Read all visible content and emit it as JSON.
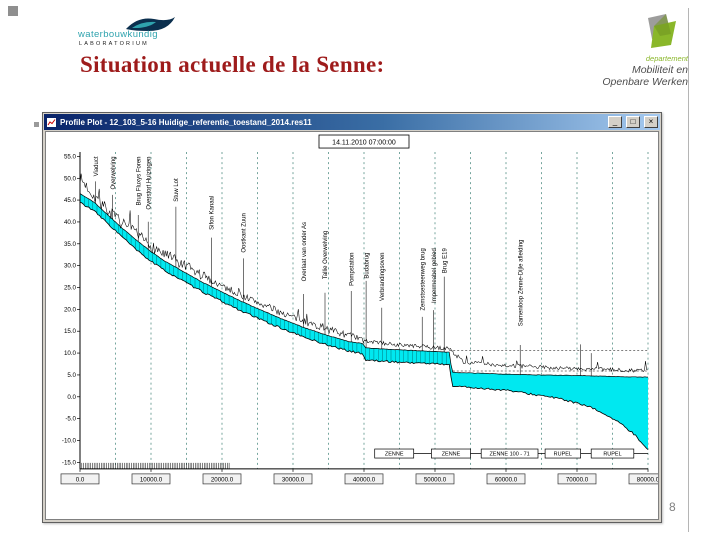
{
  "slide": {
    "title": "Situation actuelle de la Senne:",
    "page_number": "8"
  },
  "logos": {
    "wl": {
      "name": "waterbouwkundig",
      "sub": "LABORATORIUM"
    },
    "mow": {
      "dept": "departement",
      "line1": "Mobiliteit en",
      "line2": "Openbare Werken"
    }
  },
  "window": {
    "title": "Profile Plot - 12_103_5-16 Huidige_referentie_toestand_2014.res11",
    "buttons": {
      "minimize": "_",
      "maximize": "□",
      "close": "×"
    }
  },
  "colors": {
    "title_maroon": "#9e1b1b",
    "wl_teal": "#2fa3ae",
    "mow_green": "#8ab72a",
    "water_fill": "#00e8f0",
    "grid_line": "#1d6b5e"
  },
  "chart_data": {
    "type": "area",
    "title": "14.11.2010 07:00:00",
    "xlabel": "",
    "ylabel": "",
    "xlim": [
      0,
      80000
    ],
    "ylim": [
      -16.5,
      56
    ],
    "x_ticks": {
      "values": [
        0,
        10000,
        20000,
        30000,
        40000,
        50000,
        60000,
        70000,
        80000
      ],
      "labels": [
        "0.0",
        "10000.0",
        "20000.0",
        "30000.0",
        "40000.0",
        "50000.0",
        "60000.0",
        "70000.0",
        "80000.0"
      ]
    },
    "y_ticks": {
      "values": [
        55,
        50,
        45,
        40,
        35,
        30,
        25,
        20,
        15,
        10,
        5,
        0,
        -5,
        -10,
        -15
      ],
      "labels": [
        "55.0",
        "50.0",
        "45.0",
        "40.0",
        "35.0",
        "30.0",
        "25.0",
        "20.0",
        "15.0",
        "10.0",
        "5.0",
        "0.0",
        "-5.0",
        "-10.0",
        "-15.0"
      ]
    },
    "grid": {
      "vertical_interval": 5000,
      "style": "dashed"
    },
    "grid_color": "#1d6b5e",
    "water_fill": "#00e8f0",
    "hatch_until": 52000,
    "profiles": {
      "water_surface": [
        [
          0,
          46.5
        ],
        [
          2000,
          44.5
        ],
        [
          4000,
          41.5
        ],
        [
          6000,
          38.5
        ],
        [
          8000,
          35.8
        ],
        [
          10000,
          33.2
        ],
        [
          12000,
          31
        ],
        [
          14000,
          29.2
        ],
        [
          16000,
          27.3
        ],
        [
          18000,
          25.6
        ],
        [
          20000,
          24
        ],
        [
          22000,
          22.4
        ],
        [
          24000,
          20.9
        ],
        [
          26000,
          19.5
        ],
        [
          28000,
          18.1
        ],
        [
          30000,
          16.8
        ],
        [
          32000,
          15.6
        ],
        [
          34000,
          14.5
        ],
        [
          36000,
          13.5
        ],
        [
          38000,
          12.6
        ],
        [
          39800,
          12.2
        ],
        [
          40200,
          11.2
        ],
        [
          44000,
          10.8
        ],
        [
          48000,
          10.5
        ],
        [
          52000,
          10.2
        ],
        [
          52400,
          5.6
        ],
        [
          56000,
          5.4
        ],
        [
          60000,
          5.2
        ],
        [
          64000,
          5.0
        ],
        [
          68000,
          4.9
        ],
        [
          72000,
          4.8
        ],
        [
          76000,
          4.6
        ],
        [
          80000,
          4.5
        ]
      ],
      "riverbed": [
        [
          0,
          44.5
        ],
        [
          2000,
          42.5
        ],
        [
          4000,
          39.5
        ],
        [
          6000,
          36.5
        ],
        [
          8000,
          33.5
        ],
        [
          10000,
          31
        ],
        [
          12000,
          28.8
        ],
        [
          14000,
          27
        ],
        [
          16000,
          25.1
        ],
        [
          18000,
          23.4
        ],
        [
          20000,
          21.8
        ],
        [
          22000,
          20.2
        ],
        [
          24000,
          18.7
        ],
        [
          26000,
          17.3
        ],
        [
          28000,
          15.9
        ],
        [
          30000,
          14.6
        ],
        [
          32000,
          13.4
        ],
        [
          34000,
          12.3
        ],
        [
          36000,
          11.3
        ],
        [
          38000,
          10.4
        ],
        [
          39800,
          9.9
        ],
        [
          40200,
          8.4
        ],
        [
          44000,
          8.0
        ],
        [
          48000,
          7.7
        ],
        [
          52000,
          7.4
        ],
        [
          52400,
          2.5
        ],
        [
          56000,
          2.0
        ],
        [
          60000,
          1.5
        ],
        [
          62000,
          1.0
        ],
        [
          64000,
          0.5
        ],
        [
          66000,
          0.0
        ],
        [
          68000,
          -0.6
        ],
        [
          70000,
          -1.5
        ],
        [
          72000,
          -2.5
        ],
        [
          74000,
          -4.0
        ],
        [
          76000,
          -6.0
        ],
        [
          78000,
          -8.5
        ],
        [
          80000,
          -12.0
        ]
      ],
      "terrain": [
        [
          0,
          50
        ],
        [
          2000,
          46
        ],
        [
          4000,
          42.5
        ],
        [
          6000,
          39.5
        ],
        [
          8000,
          37
        ],
        [
          10000,
          34.5
        ],
        [
          12000,
          32.5
        ],
        [
          14000,
          30.5
        ],
        [
          16000,
          28.7
        ],
        [
          18000,
          27
        ],
        [
          20000,
          25.4
        ],
        [
          22000,
          23.8
        ],
        [
          24000,
          22.3
        ],
        [
          26000,
          20.9
        ],
        [
          28000,
          19.5
        ],
        [
          30000,
          18.2
        ],
        [
          32000,
          17
        ],
        [
          34000,
          15.9
        ],
        [
          36000,
          14.9
        ],
        [
          38000,
          14
        ],
        [
          40000,
          12.8
        ],
        [
          44000,
          12
        ],
        [
          48000,
          11.5
        ],
        [
          52000,
          11
        ],
        [
          54000,
          8
        ],
        [
          58000,
          7.4
        ],
        [
          62000,
          7
        ],
        [
          66000,
          6.7
        ],
        [
          70000,
          6.4
        ],
        [
          74000,
          6.2
        ],
        [
          80000,
          6
        ]
      ]
    },
    "tide_lines": [
      {
        "x0": 52000,
        "x1": 80000,
        "y": 10.6
      },
      {
        "x0": 52500,
        "x1": 80000,
        "y": 5.9
      }
    ],
    "stations": [
      {
        "x": 2200,
        "top": 55,
        "label": "Viaduct"
      },
      {
        "x": 4600,
        "top": 55,
        "label": "Overwelving"
      },
      {
        "x": 8200,
        "top": 55,
        "label": "Brug Fluxys Foren"
      },
      {
        "x": 9600,
        "top": 55,
        "label": "Overstort Huizingen"
      },
      {
        "x": 13500,
        "top": 50,
        "label": "Stuw Lot"
      },
      {
        "x": 18500,
        "top": 46,
        "label": "Sifon Kanaal"
      },
      {
        "x": 23000,
        "top": 42,
        "label": "Oostkant Zuun"
      },
      {
        "x": 31500,
        "top": 40,
        "label": "Overlaat van onder As"
      },
      {
        "x": 34500,
        "top": 38,
        "label": "Tallie Overwelving"
      },
      {
        "x": 38200,
        "top": 33,
        "label": "Pompstation"
      },
      {
        "x": 40300,
        "top": 33,
        "label": "Budabrug"
      },
      {
        "x": 42500,
        "top": 33,
        "label": "Verbrandingsoven"
      },
      {
        "x": 48200,
        "top": 34,
        "label": "Zemstsesteenweg brug"
      },
      {
        "x": 49800,
        "top": 34,
        "label": "Impermeabel gebied"
      },
      {
        "x": 51300,
        "top": 34,
        "label": "Brug E19"
      },
      {
        "x": 62000,
        "top": 36,
        "label": "Samenloop Zenne-Dijle afleiding"
      },
      {
        "x": 70500,
        "top": 12,
        "label": ""
      },
      {
        "x": 72000,
        "top": 10,
        "label": ""
      }
    ],
    "reach_boxes": [
      {
        "x0": 41500,
        "x1": 47000,
        "label": "ZENNE"
      },
      {
        "x0": 49500,
        "x1": 55000,
        "label": "ZENNE"
      },
      {
        "x0": 56500,
        "x1": 64500,
        "label": "ZENNE 100 - 71"
      },
      {
        "x0": 65500,
        "x1": 70500,
        "label": "RUPEL"
      },
      {
        "x0": 72000,
        "x1": 78000,
        "label": "RUPEL"
      }
    ],
    "bottom_ticks": {
      "from": 0,
      "to": 21000,
      "step": 250
    }
  }
}
